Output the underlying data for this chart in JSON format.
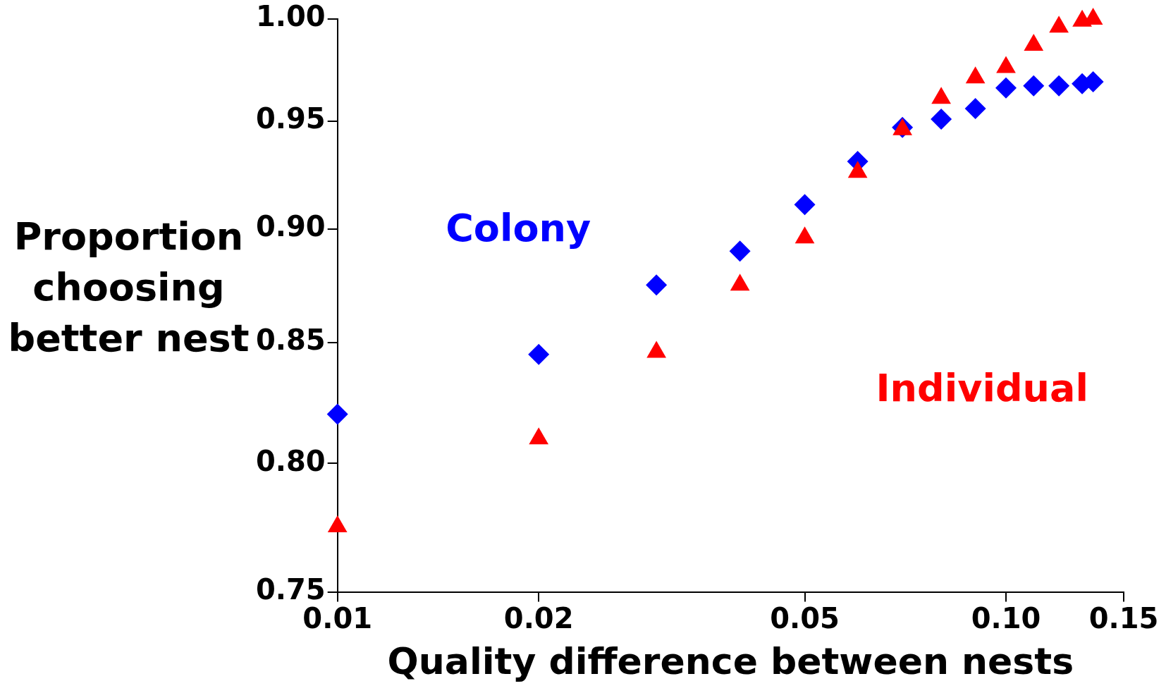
{
  "chart_data": {
    "type": "scatter",
    "xlabel": "Quality difference between nests",
    "ylabel": "Proportion choosing better nest",
    "log": "xy",
    "grid": false,
    "legend": false,
    "xlim": [
      0.01,
      0.15
    ],
    "ylim": [
      0.75,
      1.0
    ],
    "xticks": [
      {
        "value": 0.01,
        "label": "0.01"
      },
      {
        "value": 0.02,
        "label": "0.02"
      },
      {
        "value": 0.05,
        "label": "0.05"
      },
      {
        "value": 0.1,
        "label": "0.10"
      },
      {
        "value": 0.15,
        "label": "0.15"
      }
    ],
    "yticks": [
      {
        "value": 0.75,
        "label": "0.75"
      },
      {
        "value": 0.8,
        "label": "0.80"
      },
      {
        "value": 0.85,
        "label": "0.85"
      },
      {
        "value": 0.9,
        "label": "0.90"
      },
      {
        "value": 0.95,
        "label": "0.95"
      },
      {
        "value": 1.0,
        "label": "1.00"
      }
    ],
    "series": [
      {
        "name": "Colony",
        "color": "#0000ff",
        "marker": "diamond",
        "x": [
          0.01,
          0.02,
          0.03,
          0.04,
          0.05,
          0.06,
          0.07,
          0.08,
          0.09,
          0.1,
          0.11,
          0.12,
          0.13,
          0.135
        ],
        "values": [
          0.82,
          0.845,
          0.875,
          0.89,
          0.911,
          0.931,
          0.947,
          0.951,
          0.956,
          0.966,
          0.967,
          0.967,
          0.968,
          0.969
        ]
      },
      {
        "name": "Individual",
        "color": "#ff0000",
        "marker": "triangle",
        "x": [
          0.01,
          0.02,
          0.03,
          0.04,
          0.05,
          0.06,
          0.07,
          0.08,
          0.09,
          0.1,
          0.11,
          0.12,
          0.13,
          0.135
        ],
        "values": [
          0.775,
          0.81,
          0.846,
          0.875,
          0.896,
          0.926,
          0.946,
          0.961,
          0.971,
          0.976,
          0.987,
          0.996,
          0.999,
          1.0
        ]
      }
    ]
  }
}
